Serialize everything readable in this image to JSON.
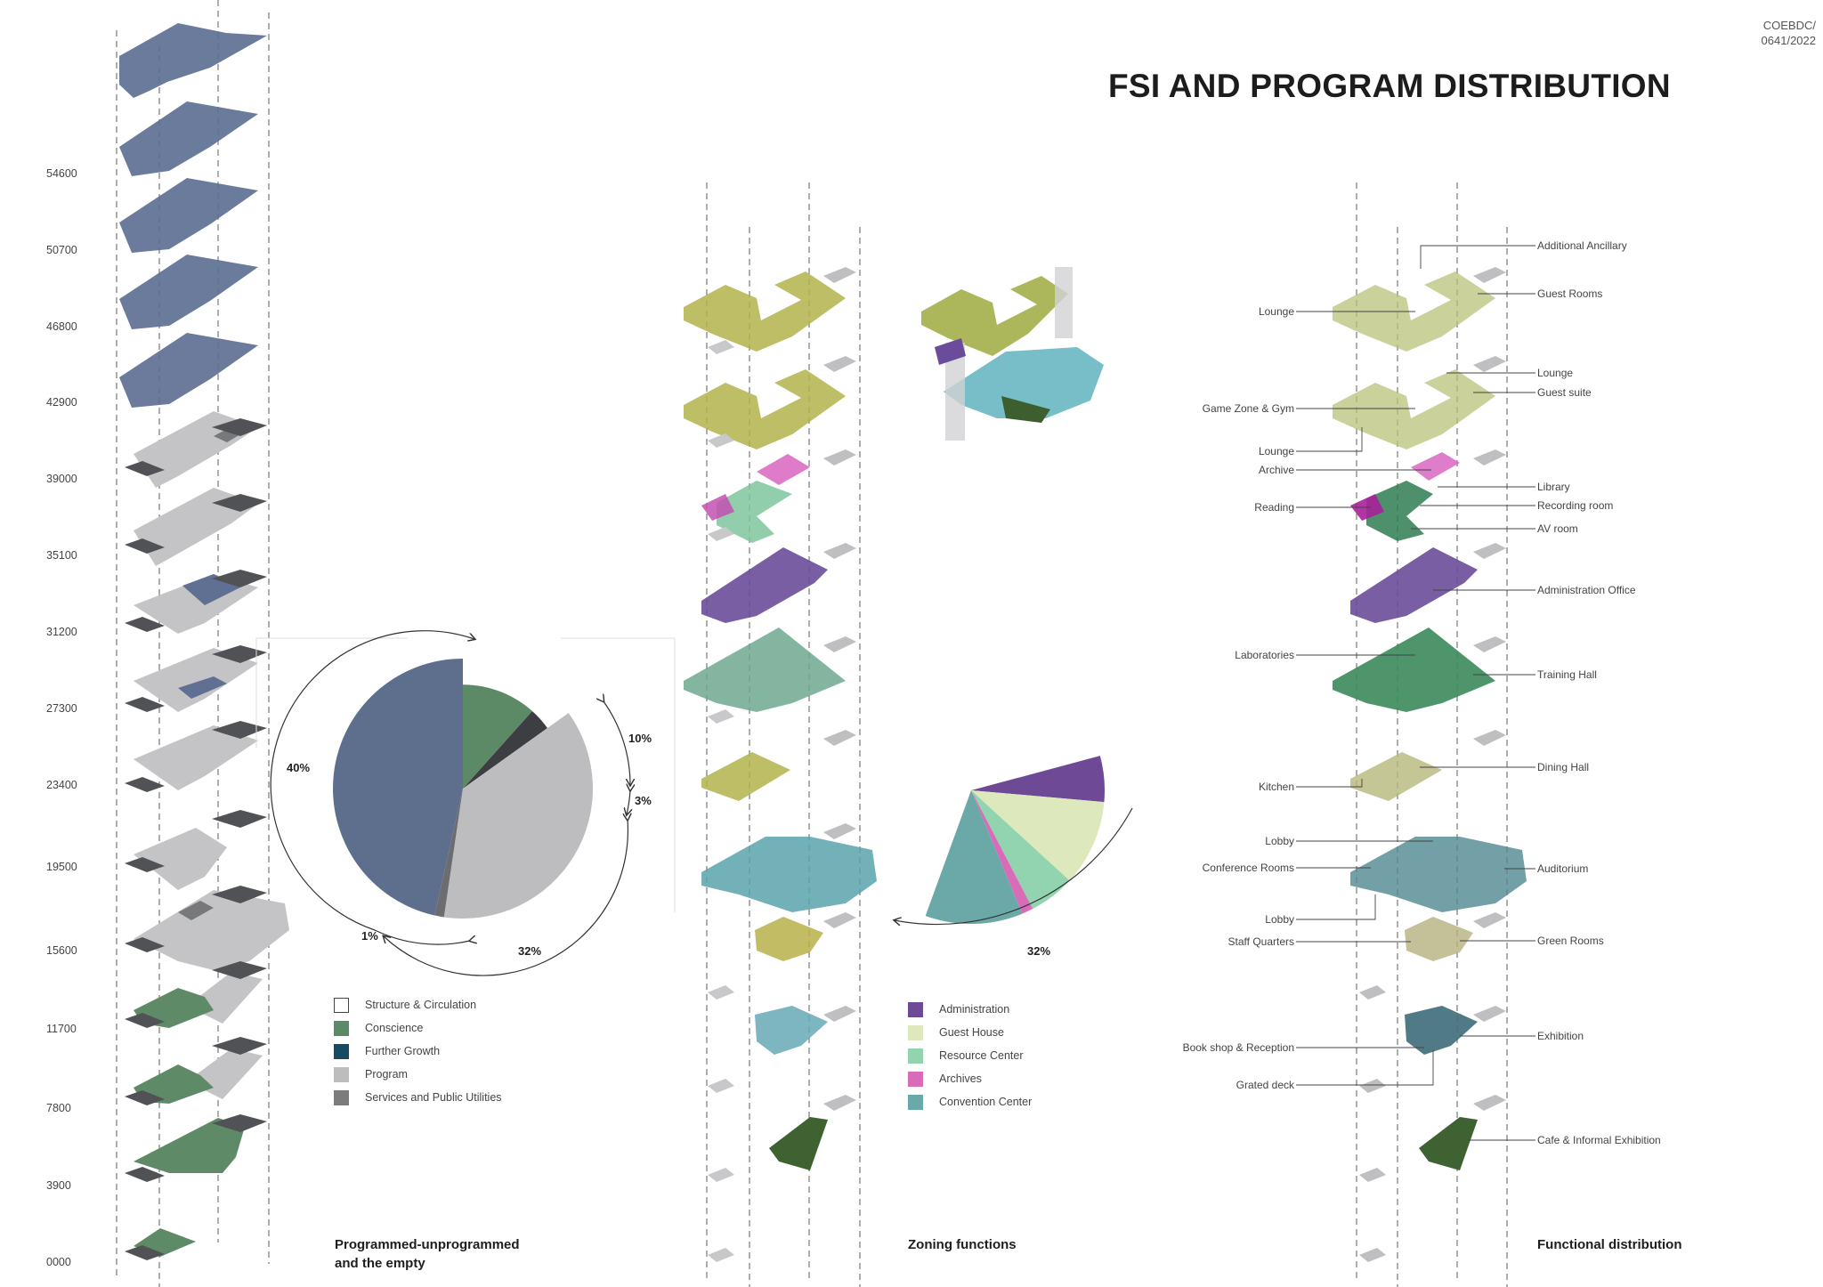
{
  "page": {
    "title": "FSI AND PROGRAM DISTRIBUTION",
    "code_line1": "COEBDC/",
    "code_line2": "0641/2022"
  },
  "elevations": [
    "54600",
    "50700",
    "46800",
    "42900",
    "39000",
    "35100",
    "31200",
    "27300",
    "23400",
    "19500",
    "15600",
    "11700",
    "7800",
    "3900",
    "0000"
  ],
  "section1": {
    "title_line1": "Programmed-unprogrammed",
    "title_line2": "and the empty",
    "legend": [
      {
        "label": "Structure & Circulation",
        "color": "#ffffff"
      },
      {
        "label": "Conscience",
        "color": "#5d8a66"
      },
      {
        "label": "Further Growth",
        "color": "#174a63"
      },
      {
        "label": "Program",
        "color": "#bdbdbf"
      },
      {
        "label": "Services and Public Utilities",
        "color": "#7c7c7e"
      }
    ],
    "pie_labels": {
      "blue": "40%",
      "green": "10%",
      "dark": "3%",
      "grey": "32%",
      "small": "1%"
    }
  },
  "section2": {
    "title": "Zoning functions",
    "legend": [
      {
        "label": "Administration",
        "color": "#6e4a96"
      },
      {
        "label": "Guest House",
        "color": "#dde8bd"
      },
      {
        "label": "Resource Center",
        "color": "#92d3b0"
      },
      {
        "label": "Archives",
        "color": "#d96cb9"
      },
      {
        "label": "Convention Center",
        "color": "#6ba8a8"
      }
    ],
    "pie_label": "32%"
  },
  "section3": {
    "title": "Functional distribution",
    "right_labels": [
      "Additional Ancillary",
      "Guest Rooms",
      "Lounge",
      "Guest suite",
      "Library",
      "Recording room",
      "AV room",
      "Administration Office",
      "Training Hall",
      "Dining Hall",
      "Auditorium",
      "Green Rooms",
      "Exhibition",
      "Cafe & Informal Exhibition"
    ],
    "left_labels": [
      "Lounge",
      "Game Zone & Gym",
      "Lounge",
      "Archive",
      "Reading",
      "Laboratories",
      "Kitchen",
      "Lobby",
      "Conference Rooms",
      "Lobby",
      "Staff Quarters",
      "Book shop & Reception",
      "Grated deck"
    ]
  },
  "chart_data": [
    {
      "type": "pie",
      "title": "Programmed-unprogrammed and the empty",
      "categories": [
        "Further Growth",
        "Conscience",
        "Services and Public Utilities",
        "Program",
        "Structure & Circulation"
      ],
      "values": [
        40,
        10,
        3,
        32,
        1
      ],
      "labels": [
        "40%",
        "10%",
        "3%",
        "32%",
        "1%"
      ]
    },
    {
      "type": "pie",
      "title": "Zoning functions",
      "categories": [
        "Administration",
        "Guest House",
        "Resource Center",
        "Archives",
        "Convention Center"
      ],
      "labels": [
        "32%"
      ]
    }
  ]
}
